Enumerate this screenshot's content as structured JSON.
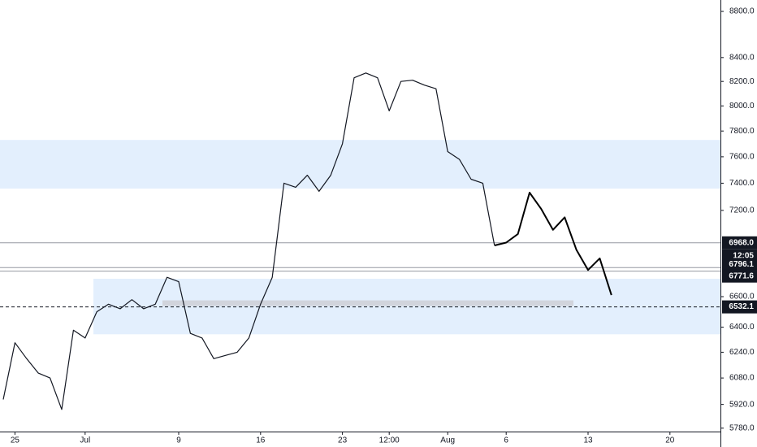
{
  "chart_data": {
    "type": "line",
    "log_scale": true,
    "ylim": [
      5765,
      8902
    ],
    "yticks": [
      {
        "value": 8800,
        "label": "8800.0"
      },
      {
        "value": 8400,
        "label": "8400.0"
      },
      {
        "value": 8200,
        "label": "8200.0"
      },
      {
        "value": 8000,
        "label": "8000.0"
      },
      {
        "value": 7800,
        "label": "7800.0"
      },
      {
        "value": 7600,
        "label": "7600.0"
      },
      {
        "value": 7400,
        "label": "7400.0"
      },
      {
        "value": 7200,
        "label": "7200.0"
      },
      {
        "value": 6600,
        "label": "6600.0"
      },
      {
        "value": 6400,
        "label": "6400.0"
      },
      {
        "value": 6240,
        "label": "6240.0"
      },
      {
        "value": 6080,
        "label": "6080.0"
      },
      {
        "value": 5920,
        "label": "5920.0"
      },
      {
        "value": 5780,
        "label": "5780.0"
      }
    ],
    "categories": [
      null,
      "25",
      null,
      null,
      null,
      null,
      null,
      "Jul",
      null,
      null,
      null,
      null,
      null,
      null,
      null,
      "9",
      null,
      null,
      null,
      null,
      null,
      null,
      "16",
      null,
      null,
      null,
      null,
      null,
      null,
      "23",
      null,
      null,
      null,
      "12:00",
      null,
      null,
      null,
      null,
      "Aug",
      null,
      null,
      null,
      null,
      "6",
      null,
      null,
      null,
      null,
      null,
      null,
      "13",
      null,
      null,
      null,
      null,
      null,
      null,
      "20",
      null,
      null,
      null,
      null
    ],
    "series": [
      {
        "color": "#131722",
        "values": [
          5950,
          6300,
          6200,
          6110,
          6080,
          5890,
          6380,
          6330,
          6500,
          6550,
          6520,
          6580,
          6520,
          6550,
          6730,
          6700,
          6360,
          6330,
          6200,
          6220,
          6240,
          6330,
          6550,
          6730,
          7400,
          7370,
          7460,
          7340,
          7460,
          7700,
          8230,
          8270,
          8230,
          7960,
          8200,
          8210,
          8170,
          8140,
          7640,
          7580,
          7430,
          7400,
          6950,
          null,
          null,
          null,
          null,
          null,
          null,
          null,
          null,
          null,
          null,
          null,
          null,
          null,
          null,
          null,
          null,
          null,
          null,
          null
        ]
      },
      {
        "color": "#000000",
        "values": [
          null,
          null,
          null,
          null,
          null,
          null,
          null,
          null,
          null,
          null,
          null,
          null,
          null,
          null,
          null,
          null,
          null,
          null,
          null,
          null,
          null,
          null,
          null,
          null,
          null,
          null,
          null,
          null,
          null,
          null,
          null,
          null,
          null,
          null,
          null,
          null,
          null,
          null,
          null,
          null,
          null,
          null,
          6950,
          6970,
          7030,
          7330,
          7210,
          7060,
          7150,
          6920,
          6780,
          6860,
          6610,
          null,
          null,
          null,
          null,
          null,
          null,
          null,
          null,
          null
        ]
      }
    ],
    "zones": [
      {
        "from": 7360,
        "to": 7730,
        "color": "#e3effd"
      },
      {
        "from": 6354,
        "to": 6720,
        "color": "#e3effd"
      },
      {
        "from": 6538,
        "to": 6575,
        "color": "#d1d4dc"
      }
    ],
    "levels": [
      {
        "value": 6968,
        "label": "6968.0",
        "color": "#9598a1",
        "dashed": false
      },
      {
        "value": 6796.1,
        "label": "6796.1",
        "color": "#9598a1",
        "dashed": false
      },
      {
        "value": 6771.6,
        "label": "6771.6",
        "color": "#9598a1",
        "dashed": false
      },
      {
        "value": 6532.1,
        "label": "6532.1",
        "color": "#131722",
        "dashed": true
      }
    ],
    "countdown": "12:05"
  }
}
